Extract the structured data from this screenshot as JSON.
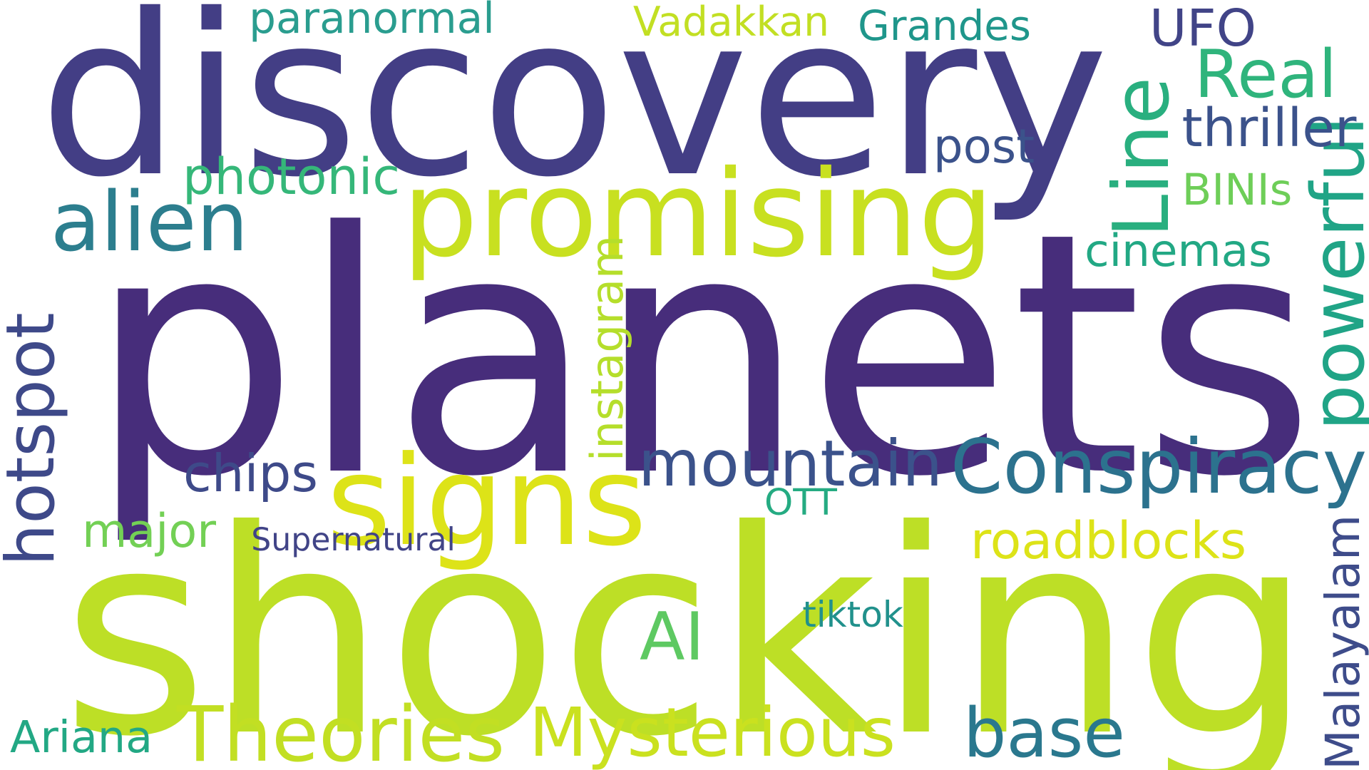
{
  "words": [
    {
      "text": "planets",
      "color": "#472d7b"
    },
    {
      "text": "shocking",
      "color": "#bddf26"
    },
    {
      "text": "discovery",
      "color": "#433e85"
    },
    {
      "text": "promising",
      "color": "#c8e020"
    },
    {
      "text": "signs",
      "color": "#dde318"
    },
    {
      "text": "Conspiracy",
      "color": "#2c728e"
    },
    {
      "text": "mountain",
      "color": "#3b528b"
    },
    {
      "text": "alien",
      "color": "#2c7e8e"
    },
    {
      "text": "Theories",
      "color": "#c2df23"
    },
    {
      "text": "Mysterious",
      "color": "#cae11f"
    },
    {
      "text": "base",
      "color": "#2a788e"
    },
    {
      "text": "Real",
      "color": "#2fb47c"
    },
    {
      "text": "UFO",
      "color": "#414487"
    },
    {
      "text": "Line",
      "color": "#29af7f"
    },
    {
      "text": "powerful",
      "color": "#20a486"
    },
    {
      "text": "hotspot",
      "color": "#3e4989"
    },
    {
      "text": "Malayalam",
      "color": "#3e4c8a"
    },
    {
      "text": "instagram",
      "color": "#b5de2b"
    },
    {
      "text": "roadblocks",
      "color": "#dde318"
    },
    {
      "text": "AI",
      "color": "#5ec962"
    },
    {
      "text": "cinemas",
      "color": "#22a884"
    },
    {
      "text": "photonic",
      "color": "#35b779"
    },
    {
      "text": "thriller",
      "color": "#3b528b"
    },
    {
      "text": "post",
      "color": "#3b528b"
    },
    {
      "text": "paranormal",
      "color": "#2a9d8f"
    },
    {
      "text": "Vadakkan",
      "color": "#c2df23"
    },
    {
      "text": "Grandes",
      "color": "#1f968b"
    },
    {
      "text": "chips",
      "color": "#3e4a89"
    },
    {
      "text": "major",
      "color": "#73d055"
    },
    {
      "text": "BINIs",
      "color": "#6ece58"
    },
    {
      "text": "Ariana",
      "color": "#22a884"
    },
    {
      "text": "OTT",
      "color": "#25ab82"
    },
    {
      "text": "Supernatural",
      "color": "#414487"
    },
    {
      "text": "tiktok",
      "color": "#21918c"
    }
  ]
}
